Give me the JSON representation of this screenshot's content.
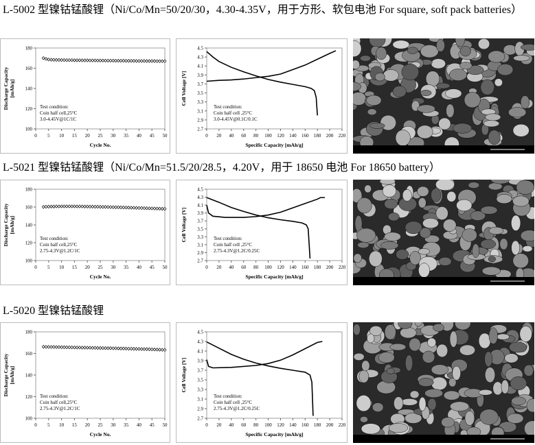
{
  "sections": [
    {
      "heading": "L-5002 型镍钴锰酸锂（Ni/Co/Mn=50/20/30，4.30-4.35V，用于方形、软包电池 For square, soft pack batteries）",
      "cycle_chart": {
        "type": "line",
        "y_label": [
          "Discharge Capacity",
          "[mAh/g]"
        ],
        "x_label": "Cycle No.",
        "xlim": [
          0,
          50
        ],
        "xticks": [
          0,
          5,
          10,
          15,
          20,
          25,
          30,
          35,
          40,
          45,
          50
        ],
        "ylim": [
          100,
          180
        ],
        "yticks": [
          100,
          120,
          140,
          160,
          180
        ],
        "notes": [
          "Test condition:",
          "Coin half cell,25°C",
          "3.0-4.45V@1C/1C"
        ],
        "x": [
          3,
          4,
          5,
          6,
          7,
          8,
          9,
          10,
          11,
          12,
          13,
          14,
          15,
          16,
          17,
          18,
          19,
          20,
          21,
          22,
          23,
          24,
          25,
          26,
          27,
          28,
          29,
          30,
          31,
          32,
          33,
          34,
          35,
          36,
          37,
          38,
          39,
          40,
          41,
          42,
          43,
          44,
          45,
          46,
          47,
          48,
          49,
          50
        ],
        "values": [
          170,
          169.2,
          168.6,
          168.4,
          168.3,
          168.2,
          168.2,
          168.1,
          168.1,
          168,
          168,
          168,
          167.9,
          167.9,
          167.9,
          167.8,
          167.8,
          167.8,
          167.7,
          167.7,
          167.7,
          167.6,
          167.6,
          167.6,
          167.5,
          167.5,
          167.5,
          167.5,
          167.4,
          167.4,
          167.4,
          167.4,
          167.3,
          167.3,
          167.3,
          167.3,
          167.2,
          167.2,
          167.2,
          167.2,
          167.1,
          167.1,
          167.1,
          167.1,
          167,
          167,
          167,
          167
        ]
      },
      "voltage_chart": {
        "type": "line",
        "y_label": "Cell Voltage [V]",
        "x_label": "Specific Capacity [mAh/g]",
        "xlim": [
          0,
          220
        ],
        "xticks": [
          0,
          20,
          40,
          60,
          80,
          100,
          120,
          140,
          160,
          180,
          200,
          220
        ],
        "ylim": [
          2.7,
          4.5
        ],
        "yticks": [
          2.7,
          2.9,
          3.1,
          3.3,
          3.5,
          3.7,
          3.9,
          4.1,
          4.3,
          4.5
        ],
        "notes": [
          "Test condition:",
          "Coin half cell ,25°C",
          "3.0-4.45V@0.1C/0.1C"
        ],
        "series": [
          {
            "color": "#000000",
            "x": [
              0,
              20,
              40,
              60,
              80,
              100,
              120,
              140,
              160,
              180,
              200,
              210
            ],
            "values": [
              3.76,
              3.78,
              3.79,
              3.81,
              3.84,
              3.87,
              3.92,
              4.02,
              4.12,
              4.25,
              4.38,
              4.44
            ]
          },
          {
            "color": "#000000",
            "x": [
              0,
              10,
              20,
              40,
              60,
              80,
              100,
              120,
              140,
              160,
              170,
              175,
              178,
              180
            ],
            "values": [
              4.42,
              4.3,
              4.2,
              4.07,
              3.97,
              3.88,
              3.8,
              3.74,
              3.69,
              3.64,
              3.6,
              3.55,
              3.4,
              3.0
            ]
          }
        ]
      }
    },
    {
      "heading": "L-5021 型镍钴锰酸锂（Ni/Co/Mn=51.5/20/28.5，4.20V，用于 18650 电池 For 18650 battery）",
      "cycle_chart": {
        "type": "line",
        "y_label": [
          "Discharge Capacity",
          "[mAh/g]"
        ],
        "x_label": "Cycle No.",
        "xlim": [
          0,
          50
        ],
        "xticks": [
          0,
          5,
          10,
          15,
          20,
          25,
          30,
          35,
          40,
          45,
          50
        ],
        "ylim": [
          100,
          180
        ],
        "yticks": [
          100,
          120,
          140,
          160,
          180
        ],
        "notes": [
          "Test condition:",
          "Coin half cell,25°C",
          "2.75-4.3V@1.2C/1C"
        ],
        "x": [
          3,
          4,
          5,
          6,
          7,
          8,
          9,
          10,
          11,
          12,
          13,
          14,
          15,
          16,
          17,
          18,
          19,
          20,
          21,
          22,
          23,
          24,
          25,
          26,
          27,
          28,
          29,
          30,
          31,
          32,
          33,
          34,
          35,
          36,
          37,
          38,
          39,
          40,
          41,
          42,
          43,
          44,
          45,
          46,
          47,
          48,
          49,
          50
        ],
        "values": [
          160.2,
          160.4,
          160.5,
          160.6,
          160.6,
          160.7,
          160.7,
          160.8,
          160.8,
          160.8,
          160.8,
          160.8,
          160.8,
          160.7,
          160.7,
          160.7,
          160.6,
          160.6,
          160.5,
          160.5,
          160.4,
          160.4,
          160.3,
          160.2,
          160.2,
          160.1,
          160,
          159.9,
          159.8,
          159.8,
          159.7,
          159.6,
          159.5,
          159.4,
          159.3,
          159.2,
          159.1,
          159,
          158.9,
          158.8,
          158.7,
          158.6,
          158.5,
          158.4,
          158.3,
          158.2,
          158.1,
          158
        ]
      },
      "voltage_chart": {
        "type": "line",
        "y_label": "Cell Voltage [V]",
        "x_label": "Specific Capacity [mAh/g]",
        "xlim": [
          0,
          220
        ],
        "xticks": [
          0,
          20,
          40,
          60,
          80,
          100,
          120,
          140,
          160,
          180,
          200,
          220
        ],
        "ylim": [
          2.7,
          4.5
        ],
        "yticks": [
          2.7,
          2.9,
          3.1,
          3.3,
          3.5,
          3.7,
          3.9,
          4.1,
          4.3,
          4.5
        ],
        "notes": [
          "Test condition:",
          "Coin half cell ,25°C",
          "2.75-4.3V@1.2C/0.25C"
        ],
        "series": [
          {
            "color": "#000000",
            "x": [
              0,
              3,
              10,
              30,
              60,
              80,
              100,
              120,
              140,
              160,
              180,
              185,
              192
            ],
            "values": [
              4.1,
              3.9,
              3.82,
              3.79,
              3.79,
              3.81,
              3.85,
              3.92,
              4.03,
              4.14,
              4.25,
              4.29,
              4.29
            ]
          },
          {
            "color": "#000000",
            "x": [
              0,
              20,
              40,
              60,
              80,
              100,
              120,
              140,
              155,
              162,
              165,
              168
            ],
            "values": [
              4.29,
              4.17,
              4.04,
              3.94,
              3.85,
              3.78,
              3.73,
              3.69,
              3.65,
              3.6,
              3.5,
              2.75
            ]
          }
        ]
      }
    },
    {
      "heading": "L-5020 型镍钴锰酸锂",
      "cycle_chart": {
        "type": "line",
        "y_label": [
          "Discharge Capacity",
          "[mAh/g]"
        ],
        "x_label": "Cycle No.",
        "xlim": [
          0,
          50
        ],
        "xticks": [
          0,
          5,
          10,
          15,
          20,
          25,
          30,
          35,
          40,
          45,
          50
        ],
        "ylim": [
          100,
          180
        ],
        "yticks": [
          100,
          120,
          140,
          160,
          180
        ],
        "notes": [
          "Test condition:",
          "Coin half cell,25°C",
          "2.75-4.3V@1.2C/1C"
        ],
        "x": [
          3,
          4,
          5,
          6,
          7,
          8,
          9,
          10,
          11,
          12,
          13,
          14,
          15,
          16,
          17,
          18,
          19,
          20,
          21,
          22,
          23,
          24,
          25,
          26,
          27,
          28,
          29,
          30,
          31,
          32,
          33,
          34,
          35,
          36,
          37,
          38,
          39,
          40,
          41,
          42,
          43,
          44,
          45,
          46,
          47,
          48,
          49,
          50
        ],
        "values": [
          166.2,
          166.1,
          166.1,
          166,
          166,
          165.9,
          165.9,
          165.8,
          165.8,
          165.7,
          165.7,
          165.6,
          165.6,
          165.5,
          165.5,
          165.4,
          165.4,
          165.3,
          165.3,
          165.2,
          165.2,
          165.1,
          165.1,
          165,
          165,
          164.9,
          164.9,
          164.8,
          164.8,
          164.7,
          164.6,
          164.6,
          164.5,
          164.4,
          164.4,
          164.3,
          164.2,
          164.2,
          164.1,
          164,
          164,
          163.9,
          163.8,
          163.7,
          163.6,
          163.5,
          163.4,
          163.3
        ]
      },
      "voltage_chart": {
        "type": "line",
        "y_label": "Cell Voltage [V]",
        "x_label": "Specific Capacity [mAh/g]",
        "xlim": [
          0,
          220
        ],
        "xticks": [
          0,
          20,
          40,
          60,
          80,
          100,
          120,
          140,
          160,
          180,
          200,
          220
        ],
        "ylim": [
          2.7,
          4.5
        ],
        "yticks": [
          2.7,
          2.9,
          3.1,
          3.3,
          3.5,
          3.7,
          3.9,
          4.1,
          4.3,
          4.5
        ],
        "notes": [
          "Test condition:",
          "Coin half cell ,25°C",
          "2.75-4.3V@1.2C/0.25C"
        ],
        "series": [
          {
            "color": "#000000",
            "x": [
              0,
              3,
              10,
              40,
              80,
              100,
              120,
              140,
              160,
              180,
              188
            ],
            "values": [
              3.92,
              3.78,
              3.75,
              3.76,
              3.8,
              3.84,
              3.91,
              4.02,
              4.15,
              4.28,
              4.3
            ]
          },
          {
            "color": "#000000",
            "x": [
              0,
              20,
              40,
              60,
              80,
              100,
              120,
              140,
              160,
              168,
              171,
              173
            ],
            "values": [
              4.29,
              4.16,
              4.03,
              3.93,
              3.85,
              3.79,
              3.74,
              3.7,
              3.66,
              3.6,
              3.45,
              2.75
            ]
          }
        ]
      }
    }
  ]
}
